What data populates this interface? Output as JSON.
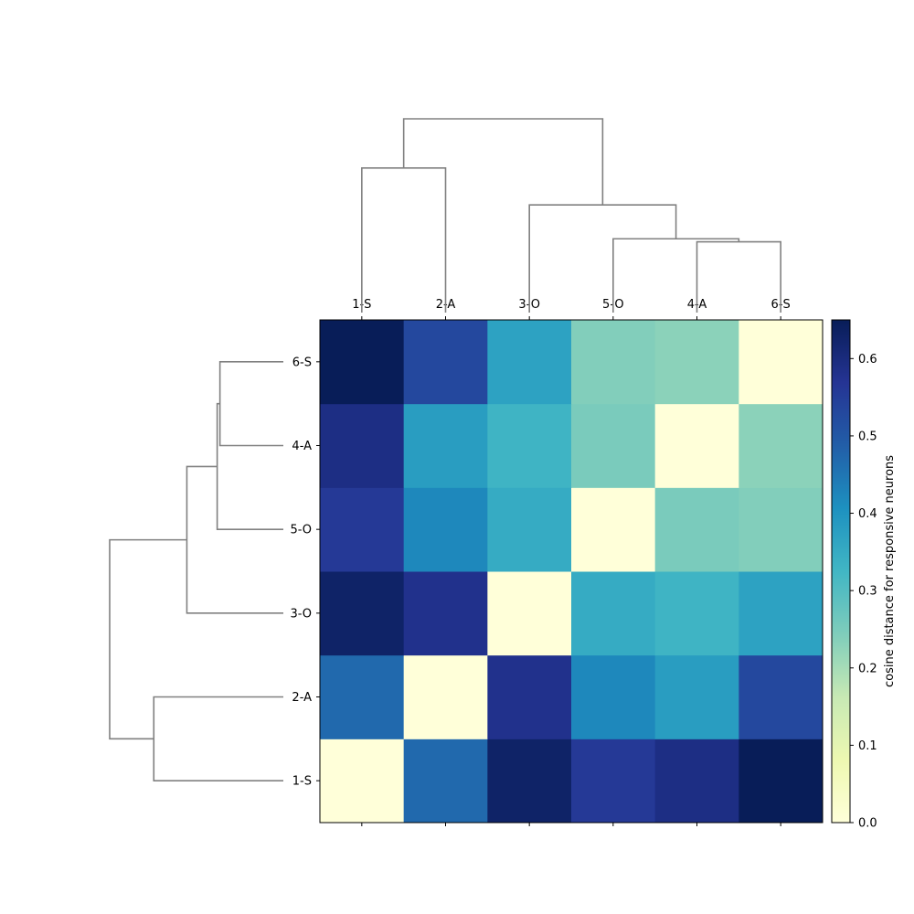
{
  "chart_data": {
    "type": "heatmap",
    "title": "",
    "x_labels": [
      "1-S",
      "2-A",
      "3-O",
      "5-O",
      "4-A",
      "6-S"
    ],
    "y_labels_bottom_to_top": [
      "1-S",
      "2-A",
      "3-O",
      "5-O",
      "4-A",
      "6-S"
    ],
    "matrix": {
      "1-S": {
        "1-S": 0.0,
        "2-A": 0.47,
        "3-O": 0.63,
        "5-O": 0.56,
        "4-A": 0.59,
        "6-S": 0.65
      },
      "2-A": {
        "1-S": 0.47,
        "2-A": 0.0,
        "3-O": 0.58,
        "5-O": 0.42,
        "4-A": 0.38,
        "6-S": 0.53
      },
      "3-O": {
        "1-S": 0.63,
        "2-A": 0.58,
        "3-O": 0.0,
        "5-O": 0.35,
        "4-A": 0.33,
        "6-S": 0.37
      },
      "5-O": {
        "1-S": 0.56,
        "2-A": 0.42,
        "3-O": 0.35,
        "5-O": 0.0,
        "4-A": 0.25,
        "6-S": 0.24
      },
      "4-A": {
        "1-S": 0.59,
        "2-A": 0.38,
        "3-O": 0.33,
        "5-O": 0.25,
        "4-A": 0.0,
        "6-S": 0.23
      },
      "6-S": {
        "1-S": 0.65,
        "2-A": 0.53,
        "3-O": 0.37,
        "5-O": 0.24,
        "4-A": 0.23,
        "6-S": 0.0
      }
    },
    "vmin": 0.0,
    "vmax": 0.65,
    "colormap": "YlGnBu",
    "colorbar": {
      "label": "cosine distance for responsive neurons",
      "ticks": [
        0.0,
        0.1,
        0.2,
        0.3,
        0.4,
        0.5,
        0.6
      ],
      "tick_labels": [
        "0.0",
        "0.1",
        "0.2",
        "0.3",
        "0.4",
        "0.5",
        "0.6"
      ]
    },
    "dendrogram": {
      "line_color": "#808080",
      "merges": [
        {
          "left": "4-A",
          "right": "6-S",
          "height": 0.23
        },
        {
          "left": "5-O",
          "right": "4-A+6-S",
          "height": 0.24
        },
        {
          "left": "3-O",
          "right": "5-O+4-A+6-S",
          "height": 0.35
        },
        {
          "left": "1-S",
          "right": "2-A",
          "height": 0.47
        },
        {
          "left": "1-S+2-A",
          "right": "3-O+5-O+4-A+6-S",
          "height": 0.63
        }
      ]
    }
  }
}
